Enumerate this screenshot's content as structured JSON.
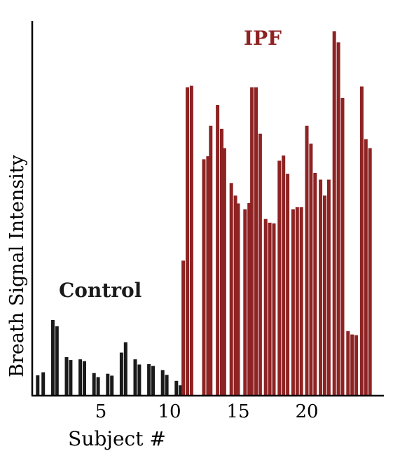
{
  "chart_data": {
    "type": "bar",
    "title": "",
    "xlabel": "Subject #",
    "ylabel": "Breath Signal Intensity",
    "xlim": [
      0,
      25
    ],
    "ylim": [
      0,
      100
    ],
    "x_ticks": [
      5,
      10,
      15,
      20
    ],
    "grid": false,
    "colors": {
      "control": "#1a1a1a",
      "ipf": "#8e2323"
    },
    "group_labels": [
      {
        "text": "Control",
        "series": "control"
      },
      {
        "text": "IPF",
        "series": "ipf"
      }
    ],
    "series": [
      {
        "key": "control",
        "color": "#1a1a1a",
        "points": [
          {
            "x": 0.4,
            "value": 5.5
          },
          {
            "x": 0.8,
            "value": 6.3
          },
          {
            "x": 1.5,
            "value": 20.4
          },
          {
            "x": 1.8,
            "value": 18.7
          },
          {
            "x": 2.5,
            "value": 10.4
          },
          {
            "x": 2.8,
            "value": 9.6
          },
          {
            "x": 3.5,
            "value": 9.8
          },
          {
            "x": 3.8,
            "value": 9.3
          },
          {
            "x": 4.5,
            "value": 6.1
          },
          {
            "x": 4.8,
            "value": 5.0
          },
          {
            "x": 5.5,
            "value": 5.9
          },
          {
            "x": 5.8,
            "value": 5.4
          },
          {
            "x": 6.5,
            "value": 11.6
          },
          {
            "x": 6.8,
            "value": 14.4
          },
          {
            "x": 7.5,
            "value": 9.8
          },
          {
            "x": 7.8,
            "value": 8.4
          },
          {
            "x": 8.5,
            "value": 8.5
          },
          {
            "x": 8.8,
            "value": 8.0
          },
          {
            "x": 9.5,
            "value": 6.9
          },
          {
            "x": 9.8,
            "value": 5.6
          },
          {
            "x": 10.5,
            "value": 4.0
          },
          {
            "x": 10.8,
            "value": 2.8
          }
        ]
      },
      {
        "key": "ipf",
        "color": "#8e2323",
        "points": [
          {
            "x": 11.0,
            "value": 36.4
          },
          {
            "x": 11.3,
            "value": 83.1
          },
          {
            "x": 11.6,
            "value": 83.5
          },
          {
            "x": 12.5,
            "value": 63.7
          },
          {
            "x": 12.8,
            "value": 64.5
          },
          {
            "x": 13.0,
            "value": 72.7
          },
          {
            "x": 13.5,
            "value": 78.3
          },
          {
            "x": 13.8,
            "value": 71.9
          },
          {
            "x": 14.0,
            "value": 66.7
          },
          {
            "x": 14.5,
            "value": 57.3
          },
          {
            "x": 14.8,
            "value": 53.9
          },
          {
            "x": 15.0,
            "value": 51.8
          },
          {
            "x": 15.5,
            "value": 50.2
          },
          {
            "x": 15.8,
            "value": 51.9
          },
          {
            "x": 16.0,
            "value": 83.1
          },
          {
            "x": 16.3,
            "value": 83.1
          },
          {
            "x": 16.6,
            "value": 70.6
          },
          {
            "x": 17.0,
            "value": 47.6
          },
          {
            "x": 17.3,
            "value": 46.6
          },
          {
            "x": 17.6,
            "value": 46.4
          },
          {
            "x": 18.0,
            "value": 63.3
          },
          {
            "x": 18.3,
            "value": 64.7
          },
          {
            "x": 18.6,
            "value": 59.8
          },
          {
            "x": 19.0,
            "value": 50.2
          },
          {
            "x": 19.3,
            "value": 50.8
          },
          {
            "x": 19.6,
            "value": 50.8
          },
          {
            "x": 20.0,
            "value": 72.7
          },
          {
            "x": 20.3,
            "value": 67.9
          },
          {
            "x": 20.6,
            "value": 60.0
          },
          {
            "x": 21.0,
            "value": 58.2
          },
          {
            "x": 21.3,
            "value": 53.9
          },
          {
            "x": 21.6,
            "value": 58.2
          },
          {
            "x": 22.0,
            "value": 98.2
          },
          {
            "x": 22.3,
            "value": 95.2
          },
          {
            "x": 22.6,
            "value": 80.2
          },
          {
            "x": 23.0,
            "value": 17.4
          },
          {
            "x": 23.3,
            "value": 16.5
          },
          {
            "x": 23.6,
            "value": 16.3
          },
          {
            "x": 24.0,
            "value": 83.3
          },
          {
            "x": 24.3,
            "value": 69.1
          },
          {
            "x": 24.6,
            "value": 66.7
          }
        ]
      }
    ]
  }
}
